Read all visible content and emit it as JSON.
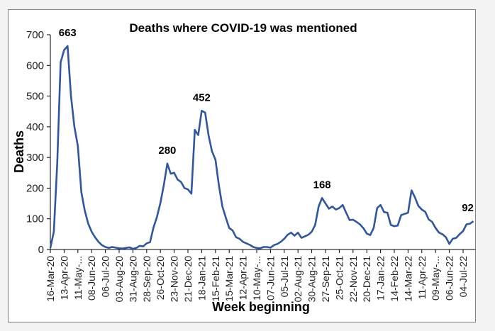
{
  "chart_data": {
    "type": "line",
    "title": "Deaths where COVID-19 was mentioned",
    "xlabel": "Week beginning",
    "ylabel": "Deaths",
    "ylim": [
      0,
      700
    ],
    "yticks": [
      0,
      100,
      200,
      300,
      400,
      500,
      600,
      700
    ],
    "grid": false,
    "legend": "none",
    "line_color": "#2f56a0",
    "x_tick_labels": [
      "16-Mar-20",
      "13-Apr-20",
      "11-May-...",
      "08-Jun-20",
      "06-Jul-20",
      "03-Aug-20",
      "31-Aug-20",
      "28-Sep-20",
      "26-Oct-20",
      "23-Nov-20",
      "21-Dec-20",
      "18-Jan-21",
      "15-Feb-21",
      "15-Mar-21",
      "12-Apr-21",
      "10-May-...",
      "07-Jun-21",
      "05-Jul-21",
      "02-Aug-21",
      "30-Aug-21",
      "27-Sep-21",
      "25-Oct-21",
      "22-Nov-21",
      "20-Dec-21",
      "17-Jan-22",
      "14-Feb-22",
      "14-Mar-22",
      "11-Apr-22",
      "09-May-...",
      "06-Jun-22",
      "04-Jul-22"
    ],
    "weeks_per_tick": 4,
    "series": [
      {
        "name": "Deaths",
        "values": [
          5,
          58,
          280,
          610,
          650,
          663,
          500,
          400,
          337,
          187,
          127,
          85,
          58,
          40,
          25,
          14,
          8,
          5,
          8,
          6,
          4,
          3,
          5,
          7,
          2,
          5,
          12,
          10,
          20,
          24,
          72,
          106,
          152,
          210,
          280,
          247,
          250,
          228,
          220,
          200,
          196,
          182,
          390,
          373,
          452,
          446,
          372,
          320,
          293,
          210,
          141,
          104,
          70,
          62,
          40,
          35,
          25,
          20,
          15,
          8,
          5,
          4,
          8,
          8,
          6,
          14,
          18,
          25,
          35,
          48,
          55,
          45,
          55,
          38,
          43,
          48,
          58,
          80,
          140,
          168,
          150,
          133,
          140,
          130,
          135,
          145,
          120,
          96,
          97,
          90,
          82,
          70,
          52,
          47,
          70,
          135,
          145,
          122,
          120,
          80,
          76,
          78,
          112,
          116,
          120,
          193,
          170,
          142,
          130,
          123,
          98,
          90,
          70,
          55,
          50,
          40,
          18,
          35,
          38,
          50,
          60,
          82,
          84,
          92
        ]
      }
    ],
    "annotations": [
      {
        "index": 5,
        "text": "663"
      },
      {
        "index": 34,
        "text": "280"
      },
      {
        "index": 44,
        "text": "452"
      },
      {
        "index": 79,
        "text": "168"
      },
      {
        "index": 123,
        "text": "92"
      }
    ]
  }
}
